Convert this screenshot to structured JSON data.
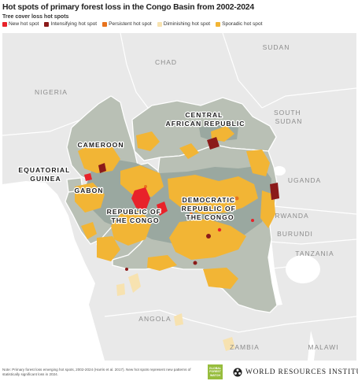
{
  "title": "Hot spots of primary forest loss in the Congo Basin from 2002-2024",
  "legend": {
    "title": "Tree cover loss hot spots",
    "items": [
      {
        "label": "New hot spot",
        "color": "#e8222a"
      },
      {
        "label": "Intensifying hot spot",
        "color": "#8b1a1a"
      },
      {
        "label": "Persistent hot spot",
        "color": "#e8731e"
      },
      {
        "label": "Diminishing hot spot",
        "color": "#f7e2b0"
      },
      {
        "label": "Sporadic hot spot",
        "color": "#f2b535"
      }
    ]
  },
  "map": {
    "outside_labels": {
      "chad": "CHAD",
      "sudan": "SUDAN",
      "nigeria": "NIGERIA",
      "south_sudan": "SOUTH\nSUDAN",
      "uganda": "UGANDA",
      "rwanda": "RWANDA",
      "burundi": "BURUNDI",
      "tanzania": "TANZANIA",
      "angola": "ANGOLA",
      "zambia": "ZAMBIA",
      "malawi": "MALAWI"
    },
    "country_labels": {
      "central_african_republic": "CENTRAL\nAFRICAN REPUBLIC",
      "cameroon": "CAMEROON",
      "equatorial_guinea": "EQUATORIAL\nGUINEA",
      "gabon": "GABON",
      "republic_of_the_congo": "REPUBLIC OF\nTHE CONGO",
      "drc": "DEMOCRATIC\nREPUBLIC OF\nTHE CONGO"
    },
    "colors": {
      "ocean": "#ffffff",
      "land": "#e9e9e9",
      "basin": "#b7bfb3",
      "forest": "#9aa8a0",
      "border": "#ffffff"
    }
  },
  "footer": {
    "note": "Note: Primary forest loss emerging hot spots, 2002-2024 (Harris et al. 2017). New hot spots represent new patterns of statistically significant loss in 2024.",
    "badge": "GLOBAL\nFOREST\nWATCH",
    "org": "WORLD RESOURCES INSTITUTE"
  }
}
